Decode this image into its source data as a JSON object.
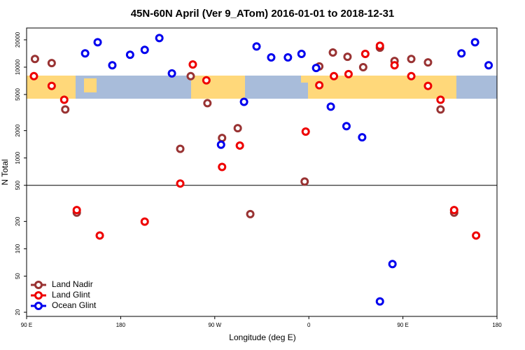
{
  "chart_data": {
    "type": "scatter",
    "title": "45N-60N April (Ver 9_ATom)   2016-01-01 to 2018-12-31",
    "x_label": "Longitude (deg E)",
    "y_label": "N Total",
    "y_log": true,
    "legend": "bottom-left",
    "hline": 500,
    "xlim": [
      90,
      540
    ],
    "ylim": [
      18,
      27000
    ],
    "xticks": [
      {
        "value": 90,
        "label": "90 E"
      },
      180,
      {
        "value": 270,
        "label": "90 W"
      },
      {
        "value": 360,
        "label": "0"
      },
      {
        "value": 450,
        "label": "90 E"
      },
      {
        "value": 540,
        "label": "180"
      }
    ],
    "yticks": [
      20,
      50,
      100,
      200,
      500,
      1000,
      2000,
      5000,
      10000,
      20000
    ],
    "series": [
      {
        "name": "Land Nadir",
        "color": "#993333",
        "x": [
          98,
          114,
          127,
          138,
          237,
          247,
          263,
          277,
          292,
          304,
          356,
          370,
          383,
          397,
          412,
          428,
          442,
          458,
          474,
          486,
          499
        ],
        "values": [
          12300,
          11100,
          3420,
          250,
          1260,
          7960,
          4010,
          1660,
          2130,
          241,
          550,
          10200,
          14500,
          13000,
          10000,
          16400,
          11700,
          12300,
          11300,
          3420,
          250
        ]
      },
      {
        "name": "Land Glint",
        "color": "#ee0000",
        "x": [
          97,
          114,
          126,
          138,
          160,
          203,
          237,
          249,
          262,
          277,
          294,
          357,
          370,
          384,
          398,
          414,
          428,
          442,
          458,
          474,
          486,
          499,
          520
        ],
        "values": [
          7960,
          6220,
          4380,
          267,
          140,
          199,
          523,
          10700,
          7160,
          796,
          1370,
          1950,
          6330,
          7960,
          8390,
          14000,
          17200,
          10500,
          7960,
          6220,
          4380,
          267,
          140
        ]
      },
      {
        "name": "Ocean Glint",
        "color": "#0000ee",
        "x": [
          146,
          158,
          172,
          189,
          203,
          217,
          229,
          276,
          298,
          310,
          324,
          340,
          353,
          367,
          381,
          396,
          411,
          428,
          440,
          506,
          519,
          532
        ],
        "values": [
          14200,
          18800,
          10500,
          13700,
          15500,
          20900,
          8540,
          1400,
          4150,
          16900,
          12800,
          12800,
          14000,
          9800,
          3670,
          2240,
          1690,
          26.3,
          67.9,
          14200,
          18800,
          10500
        ]
      }
    ]
  }
}
